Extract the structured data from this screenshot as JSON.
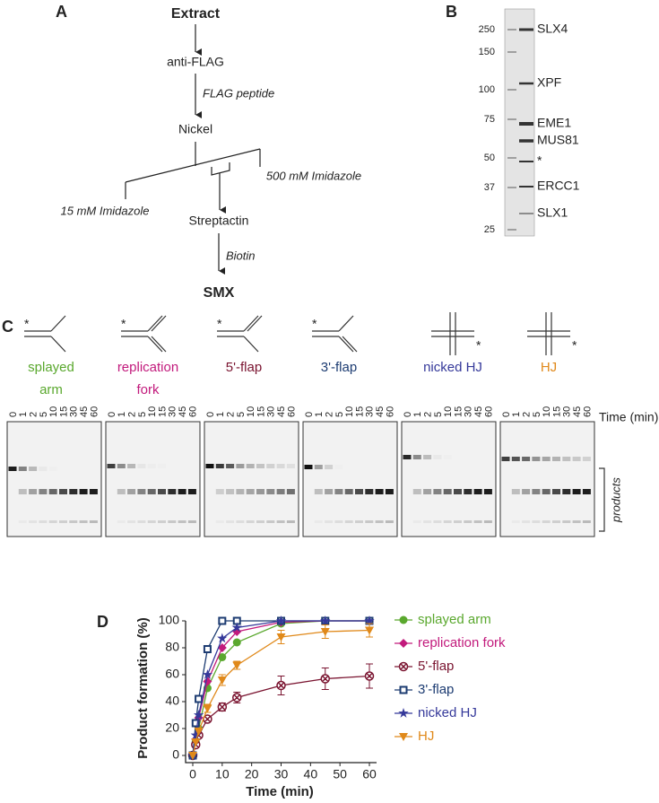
{
  "panel_a": {
    "letter": "A",
    "steps": [
      "Extract",
      "anti-FLAG",
      "Nickel",
      "Streptactin",
      "SMX"
    ],
    "elutions": [
      "FLAG peptide",
      "Biotin"
    ],
    "branches": [
      "15 mM Imidazole",
      "500 mM Imidazole"
    ]
  },
  "panel_b": {
    "letter": "B",
    "markers": [
      "250",
      "150",
      "100",
      "75",
      "50",
      "37",
      "25"
    ],
    "proteins": [
      "SLX4",
      "XPF",
      "EME1",
      "MUS81",
      "*",
      "ERCC1",
      "SLX1"
    ]
  },
  "panel_c": {
    "letter": "C",
    "substrates": [
      {
        "label": [
          "splayed",
          "arm"
        ],
        "color": "#5aa82e"
      },
      {
        "label": [
          "replication",
          "fork"
        ],
        "color": "#c21a7c"
      },
      {
        "label": [
          "5'-flap"
        ],
        "color": "#7a1430"
      },
      {
        "label": [
          "3'-flap"
        ],
        "color": "#1d3c72"
      },
      {
        "label": [
          "nicked HJ"
        ],
        "color": "#35399a"
      },
      {
        "label": [
          "HJ"
        ],
        "color": "#e0891a"
      }
    ],
    "asterisk": "*",
    "lane_times": [
      "0",
      "1",
      "2",
      "5",
      "10",
      "15",
      "30",
      "45",
      "60"
    ],
    "time_label": "Time (min)",
    "products_label": "products"
  },
  "chart_data": {
    "type": "line",
    "letter": "D",
    "x_label": "Time (min)",
    "y_label": "Product formation (%)",
    "x": [
      0,
      1,
      2,
      5,
      10,
      15,
      30,
      45,
      60
    ],
    "xlim": [
      0,
      60
    ],
    "xticks": [
      0,
      10,
      20,
      30,
      40,
      50,
      60
    ],
    "ylim": [
      0,
      100
    ],
    "yticks": [
      0,
      20,
      40,
      60,
      80,
      100
    ],
    "series": [
      {
        "name": "splayed arm",
        "color": "#5aa82e",
        "marker": "circle",
        "values": [
          0,
          10,
          20,
          50,
          73,
          84,
          98,
          100,
          100
        ]
      },
      {
        "name": "replication fork",
        "color": "#c21a7c",
        "marker": "diamond",
        "values": [
          0,
          12,
          28,
          55,
          80,
          92,
          99,
          100,
          100
        ]
      },
      {
        "name": "5'-flap",
        "color": "#7a1430",
        "marker": "circle-x",
        "values": [
          0,
          8,
          15,
          27,
          36,
          43,
          52,
          57,
          59
        ],
        "errors": [
          null,
          null,
          null,
          2,
          3,
          4,
          7,
          8,
          9
        ]
      },
      {
        "name": "3'-flap",
        "color": "#1d3c72",
        "marker": "square",
        "values": [
          0,
          24,
          42,
          79,
          100,
          100,
          100,
          100,
          100
        ]
      },
      {
        "name": "nicked HJ",
        "color": "#35399a",
        "marker": "star",
        "values": [
          0,
          15,
          30,
          60,
          87,
          95,
          100,
          100,
          100
        ]
      },
      {
        "name": "HJ",
        "color": "#e0891a",
        "marker": "triangle-down",
        "values": [
          0,
          10,
          18,
          35,
          56,
          67,
          88,
          92,
          93
        ],
        "errors": [
          null,
          null,
          null,
          3,
          4,
          3,
          5,
          5,
          5
        ]
      }
    ]
  }
}
